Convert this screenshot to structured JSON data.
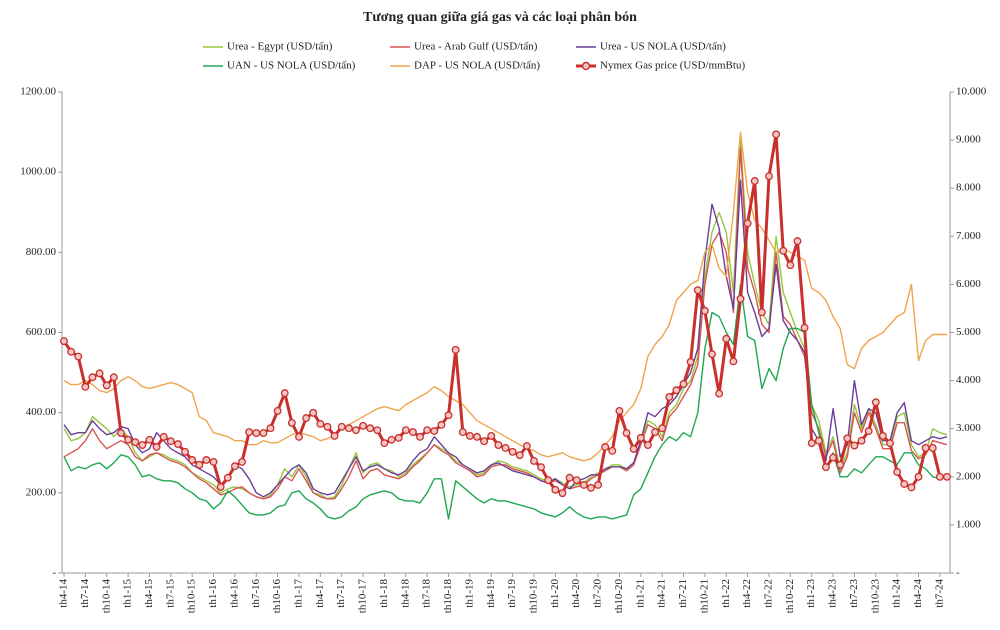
{
  "chart_data": {
    "type": "line",
    "title": "Tương quan giữa giá gas và các loại phân bón",
    "categories": [
      "th4-14",
      null,
      null,
      "th7-14",
      null,
      null,
      "th10-14",
      null,
      null,
      "th1-15",
      null,
      null,
      "th4-15",
      null,
      null,
      "th7-15",
      null,
      null,
      "th10-15",
      null,
      null,
      "th1-16",
      null,
      null,
      "th4-16",
      null,
      null,
      "th7-16",
      null,
      null,
      "th10-16",
      null,
      null,
      "th1-17",
      null,
      null,
      "th4-17",
      null,
      null,
      "th7-17",
      null,
      null,
      "th10-17",
      null,
      null,
      "th1-18",
      null,
      null,
      "th4-18",
      null,
      null,
      "th7-18",
      null,
      null,
      "th10-18",
      null,
      null,
      "th1-19",
      null,
      null,
      "th4-19",
      null,
      null,
      "th7-19",
      null,
      null,
      "th10-19",
      null,
      null,
      "th1-20",
      null,
      null,
      "th4-20",
      null,
      null,
      "th7-20",
      null,
      null,
      "th10-20",
      null,
      null,
      "th1-21",
      null,
      null,
      "th4-21",
      null,
      null,
      "th7-21",
      null,
      null,
      "th10-21",
      null,
      null,
      "th1-22",
      null,
      null,
      "th4-22",
      null,
      null,
      "th7-22",
      null,
      null,
      "th10-22",
      null,
      null,
      "th1-23",
      null,
      null,
      "th4-23",
      null,
      null,
      "th7-23",
      null,
      null,
      "th10-23",
      null,
      null,
      "th1-24",
      null,
      null,
      "th4-24",
      null,
      null,
      "th7-24",
      null
    ],
    "series": [
      {
        "name": "Urea - Egypt (USD/tấn)",
        "color": "#92c83e",
        "values": [
          360,
          330,
          335,
          350,
          390,
          375,
          360,
          340,
          360,
          340,
          300,
          280,
          290,
          300,
          295,
          285,
          280,
          270,
          250,
          240,
          230,
          220,
          200,
          210,
          215,
          210,
          200,
          190,
          185,
          195,
          220,
          260,
          240,
          270,
          240,
          200,
          195,
          185,
          190,
          220,
          260,
          300,
          250,
          270,
          275,
          260,
          255,
          240,
          250,
          270,
          285,
          300,
          320,
          310,
          300,
          280,
          270,
          260,
          245,
          250,
          270,
          280,
          275,
          265,
          260,
          255,
          245,
          235,
          230,
          235,
          225,
          215,
          220,
          225,
          240,
          250,
          260,
          270,
          270,
          260,
          275,
          330,
          380,
          370,
          340,
          400,
          420,
          460,
          480,
          540,
          740,
          850,
          900,
          850,
          700,
          1080,
          800,
          720,
          650,
          620,
          840,
          700,
          650,
          600,
          560,
          420,
          380,
          300,
          340,
          260,
          300,
          420,
          360,
          410,
          370,
          320,
          320,
          390,
          400,
          320,
          290,
          300,
          360,
          350,
          345
        ]
      },
      {
        "name": "Urea - Arab Gulf (USD/tấn)",
        "color": "#d9534f",
        "values": [
          290,
          300,
          310,
          330,
          360,
          330,
          310,
          320,
          330,
          320,
          290,
          280,
          295,
          300,
          290,
          280,
          275,
          265,
          250,
          235,
          225,
          210,
          195,
          200,
          210,
          215,
          200,
          190,
          185,
          190,
          210,
          240,
          230,
          260,
          230,
          200,
          190,
          185,
          185,
          210,
          240,
          280,
          235,
          255,
          260,
          245,
          240,
          235,
          245,
          265,
          280,
          300,
          320,
          305,
          295,
          275,
          265,
          255,
          240,
          245,
          265,
          270,
          270,
          260,
          255,
          250,
          240,
          230,
          225,
          230,
          220,
          210,
          215,
          220,
          235,
          245,
          255,
          265,
          265,
          255,
          270,
          320,
          370,
          360,
          330,
          390,
          410,
          440,
          470,
          520,
          720,
          820,
          850,
          800,
          650,
          1060,
          760,
          700,
          620,
          600,
          800,
          640,
          620,
          580,
          540,
          400,
          360,
          290,
          330,
          250,
          290,
          400,
          350,
          400,
          360,
          310,
          310,
          375,
          375,
          305,
          285,
          295,
          330,
          325,
          320
        ]
      },
      {
        "name": "Urea - US NOLA (USD/tấn)",
        "color": "#6a3d9a",
        "values": [
          370,
          345,
          350,
          350,
          380,
          360,
          345,
          350,
          365,
          360,
          320,
          300,
          310,
          350,
          330,
          310,
          300,
          290,
          270,
          260,
          250,
          240,
          220,
          240,
          270,
          260,
          235,
          200,
          190,
          200,
          220,
          240,
          260,
          270,
          250,
          210,
          200,
          195,
          200,
          230,
          260,
          290,
          255,
          265,
          270,
          260,
          250,
          245,
          255,
          280,
          300,
          310,
          340,
          320,
          300,
          290,
          270,
          260,
          250,
          255,
          270,
          275,
          265,
          255,
          250,
          245,
          240,
          230,
          225,
          235,
          220,
          210,
          230,
          235,
          245,
          245,
          260,
          265,
          265,
          260,
          275,
          330,
          400,
          390,
          410,
          420,
          440,
          470,
          500,
          560,
          780,
          920,
          860,
          740,
          660,
          980,
          700,
          650,
          590,
          610,
          770,
          630,
          600,
          580,
          550,
          360,
          330,
          280,
          410,
          290,
          320,
          480,
          370,
          410,
          400,
          330,
          330,
          400,
          425,
          330,
          320,
          330,
          340,
          335,
          340
        ]
      },
      {
        "name": "UAN - US NOLA (USD/tấn)",
        "color": "#1ea851",
        "values": [
          290,
          255,
          265,
          260,
          270,
          275,
          260,
          275,
          295,
          290,
          270,
          240,
          245,
          235,
          230,
          230,
          225,
          210,
          200,
          185,
          180,
          160,
          175,
          205,
          190,
          170,
          150,
          145,
          145,
          150,
          165,
          170,
          200,
          205,
          185,
          175,
          160,
          140,
          135,
          140,
          155,
          165,
          185,
          195,
          200,
          205,
          200,
          185,
          180,
          180,
          175,
          200,
          235,
          235,
          135,
          230,
          215,
          200,
          185,
          175,
          185,
          180,
          180,
          175,
          170,
          165,
          160,
          150,
          145,
          140,
          150,
          165,
          150,
          140,
          135,
          140,
          140,
          135,
          140,
          145,
          195,
          210,
          250,
          290,
          320,
          340,
          330,
          350,
          340,
          400,
          560,
          650,
          640,
          600,
          570,
          720,
          590,
          580,
          460,
          510,
          480,
          560,
          610,
          610,
          600,
          420,
          350,
          260,
          300,
          240,
          240,
          260,
          250,
          270,
          290,
          290,
          280,
          270,
          300,
          300,
          270,
          260,
          240,
          235,
          240
        ]
      },
      {
        "name": "DAP - US NOLA (USD/tấn)",
        "color": "#f0a44b",
        "values": [
          480,
          470,
          470,
          480,
          470,
          455,
          450,
          460,
          480,
          490,
          480,
          465,
          460,
          465,
          470,
          475,
          470,
          460,
          450,
          390,
          380,
          350,
          345,
          340,
          330,
          330,
          320,
          320,
          330,
          325,
          325,
          335,
          345,
          350,
          345,
          340,
          330,
          335,
          345,
          360,
          370,
          380,
          390,
          400,
          410,
          415,
          410,
          405,
          420,
          430,
          440,
          450,
          465,
          455,
          440,
          430,
          420,
          400,
          380,
          370,
          360,
          350,
          340,
          330,
          320,
          310,
          305,
          295,
          290,
          295,
          300,
          290,
          285,
          280,
          285,
          300,
          320,
          340,
          380,
          400,
          420,
          460,
          540,
          570,
          590,
          620,
          680,
          700,
          720,
          730,
          800,
          820,
          760,
          740,
          900,
          1100,
          950,
          880,
          860,
          830,
          800,
          810,
          800,
          790,
          780,
          710,
          700,
          680,
          640,
          610,
          520,
          510,
          560,
          580,
          590,
          600,
          620,
          640,
          650,
          720,
          530,
          580,
          595,
          595,
          595
        ]
      },
      {
        "name": "Nymex Gas price (USD/mmBtu)",
        "color": "#c9302c",
        "axis": "y2",
        "values": [
          4.82,
          4.6,
          4.5,
          3.87,
          4.07,
          4.15,
          3.9,
          4.07,
          2.91,
          2.77,
          2.72,
          2.66,
          2.77,
          2.62,
          2.83,
          2.74,
          2.68,
          2.52,
          2.35,
          2.25,
          2.35,
          2.31,
          1.79,
          1.98,
          2.22,
          2.31,
          2.93,
          2.91,
          2.91,
          3.01,
          3.37,
          3.74,
          3.12,
          2.83,
          3.22,
          3.33,
          3.1,
          3.04,
          2.85,
          3.04,
          3.01,
          2.97,
          3.06,
          3.01,
          2.97,
          2.7,
          2.77,
          2.81,
          2.97,
          2.93,
          2.83,
          2.97,
          2.95,
          3.08,
          3.28,
          4.64,
          2.93,
          2.85,
          2.83,
          2.74,
          2.85,
          2.66,
          2.6,
          2.52,
          2.45,
          2.64,
          2.33,
          2.2,
          1.93,
          1.73,
          1.66,
          1.98,
          1.93,
          1.83,
          1.77,
          1.83,
          2.62,
          2.54,
          3.37,
          2.91,
          2.58,
          2.81,
          2.66,
          2.93,
          3.01,
          3.66,
          3.8,
          3.93,
          4.39,
          5.88,
          5.45,
          4.55,
          3.73,
          4.87,
          4.4,
          5.7,
          7.27,
          8.15,
          5.42,
          8.25,
          9.12,
          6.7,
          6.4,
          6.9,
          5.1,
          2.7,
          2.75,
          2.2,
          2.4,
          2.25,
          2.8,
          2.65,
          2.75,
          2.95,
          3.55,
          2.85,
          2.7,
          2.1,
          1.85,
          1.78,
          2.0,
          2.6,
          2.6,
          2.0,
          2.0
        ]
      }
    ],
    "ylim": [
      0,
      1200
    ],
    "yticks": [
      {
        "value": 0,
        "label": "-"
      },
      {
        "value": 200,
        "label": "200.00"
      },
      {
        "value": 400,
        "label": "400.00"
      },
      {
        "value": 600,
        "label": "600.00"
      },
      {
        "value": 800,
        "label": "800.00"
      },
      {
        "value": 1000,
        "label": "1000.00"
      },
      {
        "value": 1200,
        "label": "1200.00"
      }
    ],
    "y2lim": [
      0,
      10
    ],
    "y2ticks": [
      {
        "value": 0,
        "label": "-"
      },
      {
        "value": 1,
        "label": "1.000"
      },
      {
        "value": 2,
        "label": "2.000"
      },
      {
        "value": 3,
        "label": "3.000"
      },
      {
        "value": 4,
        "label": "4.000"
      },
      {
        "value": 5,
        "label": "5.000"
      },
      {
        "value": 6,
        "label": "6.000"
      },
      {
        "value": 7,
        "label": "7.000"
      },
      {
        "value": 8,
        "label": "8.000"
      },
      {
        "value": 9,
        "label": "9.000"
      },
      {
        "value": 10,
        "label": "10.000"
      }
    ],
    "legend": "top",
    "grid": false
  }
}
